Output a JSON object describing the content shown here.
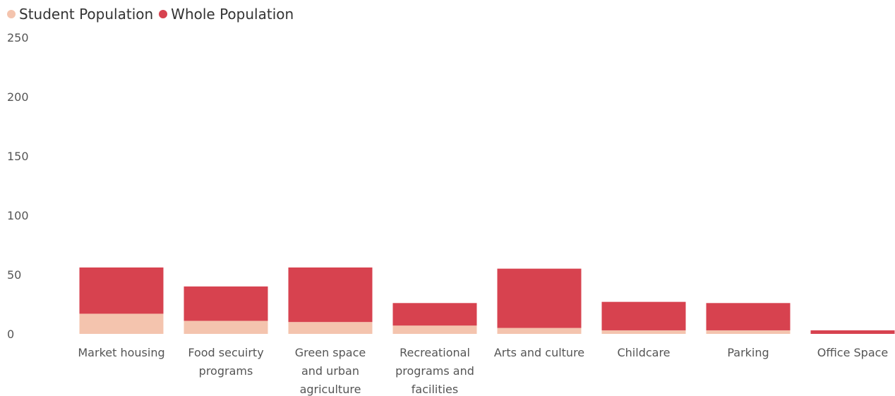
{
  "chart_data": {
    "type": "bar",
    "stacked": true,
    "categories": [
      [
        "Market housing"
      ],
      [
        "Food secuirty",
        "programs"
      ],
      [
        "Green space",
        "and urban",
        "agriculture"
      ],
      [
        "Recreational",
        "programs and",
        "facilities"
      ],
      [
        "Arts and culture"
      ],
      [
        "Childcare"
      ],
      [
        "Parking"
      ],
      [
        "Office Space"
      ]
    ],
    "series": [
      {
        "name": "Student Population",
        "color": "#f4c4ae",
        "values": [
          17,
          11,
          10,
          7,
          5,
          3,
          3,
          0
        ]
      },
      {
        "name": "Whole Population",
        "color": "#d7424f",
        "values": [
          39,
          29,
          46,
          19,
          50,
          24,
          23,
          3
        ]
      }
    ],
    "yticks": [
      0,
      50,
      100,
      150,
      200,
      250
    ],
    "ylim": [
      0,
      250
    ],
    "grid": false,
    "legend_position": "top-left"
  }
}
